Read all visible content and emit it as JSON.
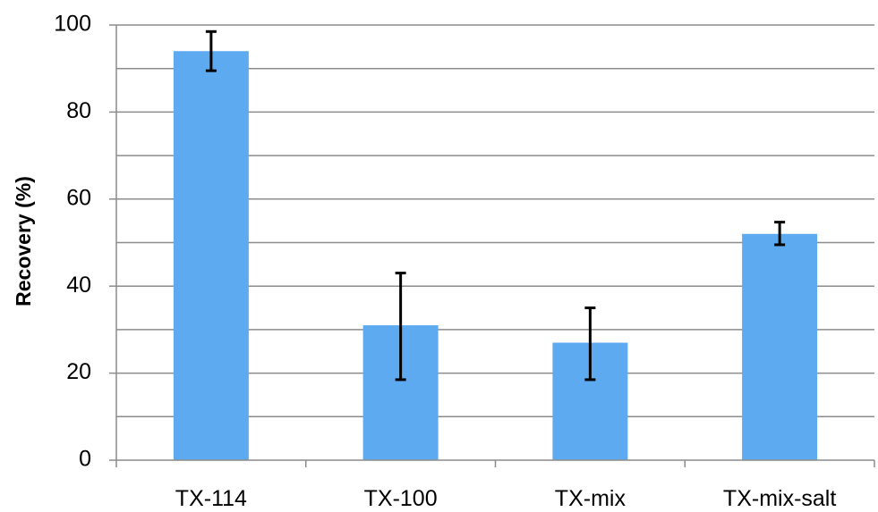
{
  "chart_data": {
    "type": "bar",
    "title": "",
    "xlabel": "",
    "ylabel": "Recovery (%)",
    "categories": [
      "TX-114",
      "TX-100",
      "TX-mix",
      "TX-mix-salt"
    ],
    "values": [
      94,
      31,
      27,
      52
    ],
    "error_low": [
      89.5,
      18.5,
      18.5,
      49.5
    ],
    "error_high": [
      98.5,
      43,
      35,
      54.7
    ],
    "ylim": [
      0,
      100
    ],
    "yticks": [
      0,
      20,
      40,
      60,
      80,
      100
    ],
    "ytick_labels": [
      "0",
      "20",
      "40",
      "60",
      "80",
      "100"
    ],
    "minor_gridlines_every": 10,
    "grid": true,
    "legend": "none",
    "colors": {
      "bar": "#5eaaf0",
      "gridline": "#8c8c8c",
      "axis": "#8c8c8c",
      "error_bar": "#000000"
    }
  }
}
